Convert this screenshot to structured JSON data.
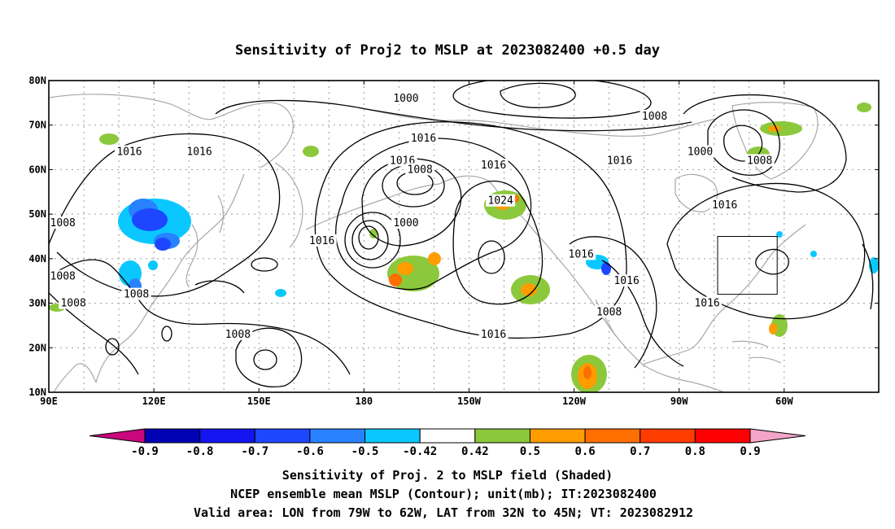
{
  "title": "Sensitivity of Proj2 to MSLP at 2023082400 +0.5 day",
  "map": {
    "lon_ticks": [
      "90E",
      "120E",
      "150E",
      "180",
      "150W",
      "120W",
      "90W",
      "60W"
    ],
    "lat_ticks": [
      "10N",
      "20N",
      "30N",
      "40N",
      "50N",
      "60N",
      "70N",
      "80N"
    ],
    "contour_labels": [
      {
        "text": "1000",
        "lon": 192,
        "lat": 76
      },
      {
        "text": "1008",
        "lon": 263,
        "lat": 72
      },
      {
        "text": "1016",
        "lon": 197,
        "lat": 67
      },
      {
        "text": "1016",
        "lon": 191,
        "lat": 62
      },
      {
        "text": "1008",
        "lon": 196,
        "lat": 60
      },
      {
        "text": "1016",
        "lon": 217,
        "lat": 61
      },
      {
        "text": "1016",
        "lon": 253,
        "lat": 62
      },
      {
        "text": "1000",
        "lon": 276,
        "lat": 64
      },
      {
        "text": "1008",
        "lon": 293,
        "lat": 62
      },
      {
        "text": "1024",
        "lon": 219,
        "lat": 53
      },
      {
        "text": "1000",
        "lon": 192,
        "lat": 48
      },
      {
        "text": "1016",
        "lon": 113,
        "lat": 64
      },
      {
        "text": "1016",
        "lon": 133,
        "lat": 64
      },
      {
        "text": "1016",
        "lon": 283,
        "lat": 52
      },
      {
        "text": "1008",
        "lon": 94,
        "lat": 48
      },
      {
        "text": "1016",
        "lon": 168,
        "lat": 44
      },
      {
        "text": "1016",
        "lon": 242,
        "lat": 41
      },
      {
        "text": "1016",
        "lon": 255,
        "lat": 35
      },
      {
        "text": "1016",
        "lon": 278,
        "lat": 30
      },
      {
        "text": "1008",
        "lon": 94,
        "lat": 36
      },
      {
        "text": "1008",
        "lon": 97,
        "lat": 30
      },
      {
        "text": "1008",
        "lon": 115,
        "lat": 32
      },
      {
        "text": "1008",
        "lon": 250,
        "lat": 28
      },
      {
        "text": "1008",
        "lon": 144,
        "lat": 23
      },
      {
        "text": "1016",
        "lon": 217,
        "lat": 23
      }
    ],
    "valid_box": {
      "lon_min": 281,
      "lon_max": 298,
      "lat_min": 32,
      "lat_max": 45
    }
  },
  "colorbar": {
    "labels": [
      "-0.9",
      "-0.8",
      "-0.7",
      "-0.6",
      "-0.5",
      "-0.42",
      "0.42",
      "0.5",
      "0.6",
      "0.7",
      "0.8",
      "0.9"
    ],
    "colors": {
      "below": "#c8087c",
      "above": "#f4a4c8",
      "bins": [
        "#0000b4",
        "#1414f0",
        "#1e46ff",
        "#2882ff",
        "#0ac8ff",
        "#ffffff",
        "#8cc83c",
        "#ff9c00",
        "#ff6e00",
        "#ff3c00",
        "#ff0000"
      ]
    }
  },
  "captions": [
    "Sensitivity of Proj. 2 to MSLP field (Shaded)",
    "NCEP ensemble mean MSLP (Contour); unit(mb); IT:2023082400",
    "Valid area: LON from 79W to 62W, LAT from 32N to 45N; VT: 2023082912"
  ]
}
